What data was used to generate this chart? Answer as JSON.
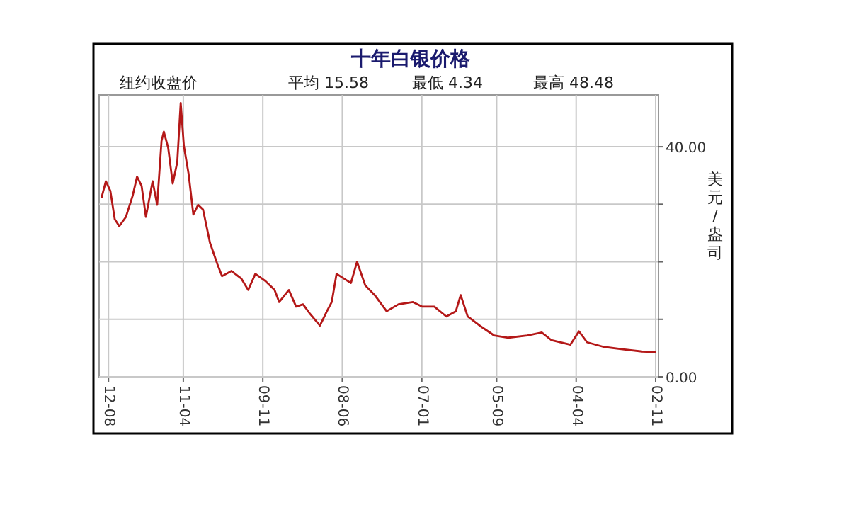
{
  "chart_data": {
    "type": "line",
    "title": "十年白银价格",
    "ylabel": "美元/盎司",
    "annotations": [
      "纽约收盘价",
      "平均 15.58",
      "最低 4.34",
      "最高 48.48"
    ],
    "x": [
      "2012-09-16",
      "2012-08-18",
      "2012-07-19",
      "2012-06-21",
      "2012-05-22",
      "2012-04-09",
      "2012-02-26",
      "2012-01-28",
      "2011-12-29",
      "2011-12-01",
      "2011-10-18",
      "2011-09-19",
      "2011-08-21",
      "2011-08-06",
      "2011-07-08",
      "2011-06-09",
      "2011-05-10",
      "2011-04-18",
      "2011-03-28",
      "2011-02-27",
      "2011-01-27",
      "2010-12-26",
      "2010-11-25",
      "2010-10-10",
      "2010-08-23",
      "2010-07-23",
      "2010-05-22",
      "2010-03-20",
      "2010-02-05",
      "2009-12-19",
      "2009-10-17",
      "2009-08-16",
      "2009-07-16",
      "2009-05-14",
      "2009-03-28",
      "2009-02-13",
      "2008-12-27",
      "2008-10-25",
      "2008-09-10",
      "2008-08-09",
      "2008-07-08",
      "2008-05-22",
      "2008-04-06",
      "2008-02-27",
      "2008-01-04",
      "2007-11-03",
      "2007-08-17",
      "2007-06-01",
      "2007-02-28",
      "2006-12-28",
      "2006-10-11",
      "2006-07-24",
      "2006-05-23",
      "2006-04-22",
      "2006-03-07",
      "2005-12-20",
      "2005-09-18",
      "2005-06-16",
      "2005-02-14",
      "2004-11-12",
      "2004-09-11",
      "2004-05-08",
      "2004-03-13",
      "2004-01-21",
      "2003-10-04",
      "2003-06-02",
      "2003-01-29",
      "2002-10-28"
    ],
    "series": [
      {
        "color": "#b41818",
        "values": [
          31.1,
          34.0,
          32.3,
          27.4,
          26.2,
          27.8,
          31.5,
          34.8,
          33.2,
          27.8,
          34.0,
          29.9,
          41.0,
          42.6,
          39.8,
          33.6,
          37.3,
          47.6,
          40.2,
          35.2,
          28.2,
          29.9,
          29.1,
          23.3,
          19.6,
          17.5,
          18.4,
          17.1,
          15.1,
          17.9,
          16.7,
          15.1,
          13.0,
          15.1,
          12.2,
          12.6,
          10.9,
          8.9,
          11.4,
          13.0,
          17.9,
          17.1,
          16.3,
          20.0,
          15.9,
          14.2,
          11.4,
          12.6,
          13.0,
          12.2,
          12.2,
          10.5,
          11.4,
          14.2,
          10.5,
          8.9,
          7.2,
          6.8,
          7.2,
          7.7,
          6.4,
          5.6,
          7.9,
          6.0,
          5.2,
          4.8,
          4.4,
          4.3
        ]
      }
    ],
    "xlim": [
      "2012-10-01",
      "2002-10-13"
    ],
    "xticks": [
      {
        "value": "2012-08",
        "label": "12-08"
      },
      {
        "value": "2011-04",
        "label": "11-04"
      },
      {
        "value": "2009-11",
        "label": "09-11"
      },
      {
        "value": "2008-06",
        "label": "08-06"
      },
      {
        "value": "2007-01",
        "label": "07-01"
      },
      {
        "value": "2005-09",
        "label": "05-09"
      },
      {
        "value": "2004-04",
        "label": "04-04"
      },
      {
        "value": "2002-11",
        "label": "02-11"
      }
    ],
    "ylim": [
      0,
      49
    ],
    "yticks": [
      {
        "value": 0,
        "label": "0.00"
      },
      {
        "value": 10,
        "label": null
      },
      {
        "value": 20,
        "label": null
      },
      {
        "value": 30,
        "label": null
      },
      {
        "value": 40,
        "label": "40.00"
      }
    ],
    "grid": true,
    "marker": "none",
    "line_style": "solid"
  }
}
